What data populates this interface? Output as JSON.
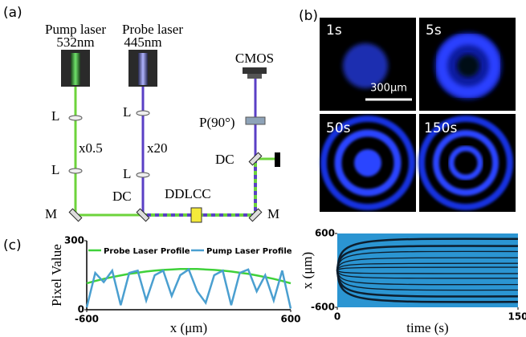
{
  "panels": [
    "(a)",
    "(b)",
    "(c)"
  ],
  "diagram": {
    "pump_laser": "Pump laser",
    "pump_wavelength": "532nm",
    "probe_laser": "Probe laser",
    "probe_wavelength": "445nm",
    "camera": "CMOS",
    "lens_labels": [
      "L",
      "L",
      "L",
      "L"
    ],
    "pump_magnification": "x0.5",
    "probe_magnification": "x20",
    "polarizer": "P(90°)",
    "dichroic_labels": [
      "DC",
      "DC"
    ],
    "cell": "DDLCC",
    "mirror_labels": [
      "M",
      "M"
    ]
  },
  "images": {
    "times": [
      "1s",
      "5s",
      "50s",
      "150s"
    ],
    "scale_bar": "300μm"
  },
  "chart_data": [
    {
      "type": "line",
      "xlabel": "x (μm)",
      "ylabel": "Pixel Value",
      "x": [
        -600,
        -550,
        -500,
        -450,
        -400,
        -350,
        -300,
        -250,
        -200,
        -150,
        -100,
        -50,
        0,
        50,
        100,
        150,
        200,
        250,
        300,
        350,
        400,
        450,
        500,
        550,
        600
      ],
      "series": [
        {
          "name": "Probe Laser Profile",
          "color": "#3fd13a",
          "values": [
            115,
            125,
            134,
            142,
            149,
            156,
            161,
            166,
            170,
            173,
            175,
            177,
            177,
            177,
            175,
            173,
            170,
            166,
            161,
            156,
            149,
            142,
            134,
            125,
            115
          ]
        },
        {
          "name": "Pump Laser Profile",
          "color": "#4a9fd0",
          "values": [
            10,
            160,
            120,
            170,
            20,
            160,
            170,
            40,
            150,
            170,
            60,
            150,
            175,
            80,
            30,
            150,
            170,
            20,
            160,
            175,
            80,
            150,
            40,
            170,
            5
          ]
        }
      ],
      "xlim": [
        -600,
        600
      ],
      "ylim": [
        0,
        300
      ],
      "xticks": [
        -600,
        600
      ],
      "yticks": [
        0,
        300
      ],
      "grid": false,
      "legend": "top"
    },
    {
      "type": "image",
      "xlabel": "time (s)",
      "ylabel": "x (μm)",
      "xlim": [
        0,
        150
      ],
      "ylim": [
        -600,
        600
      ],
      "xticks": [
        0,
        150
      ],
      "yticks": [
        -600,
        600
      ]
    }
  ]
}
